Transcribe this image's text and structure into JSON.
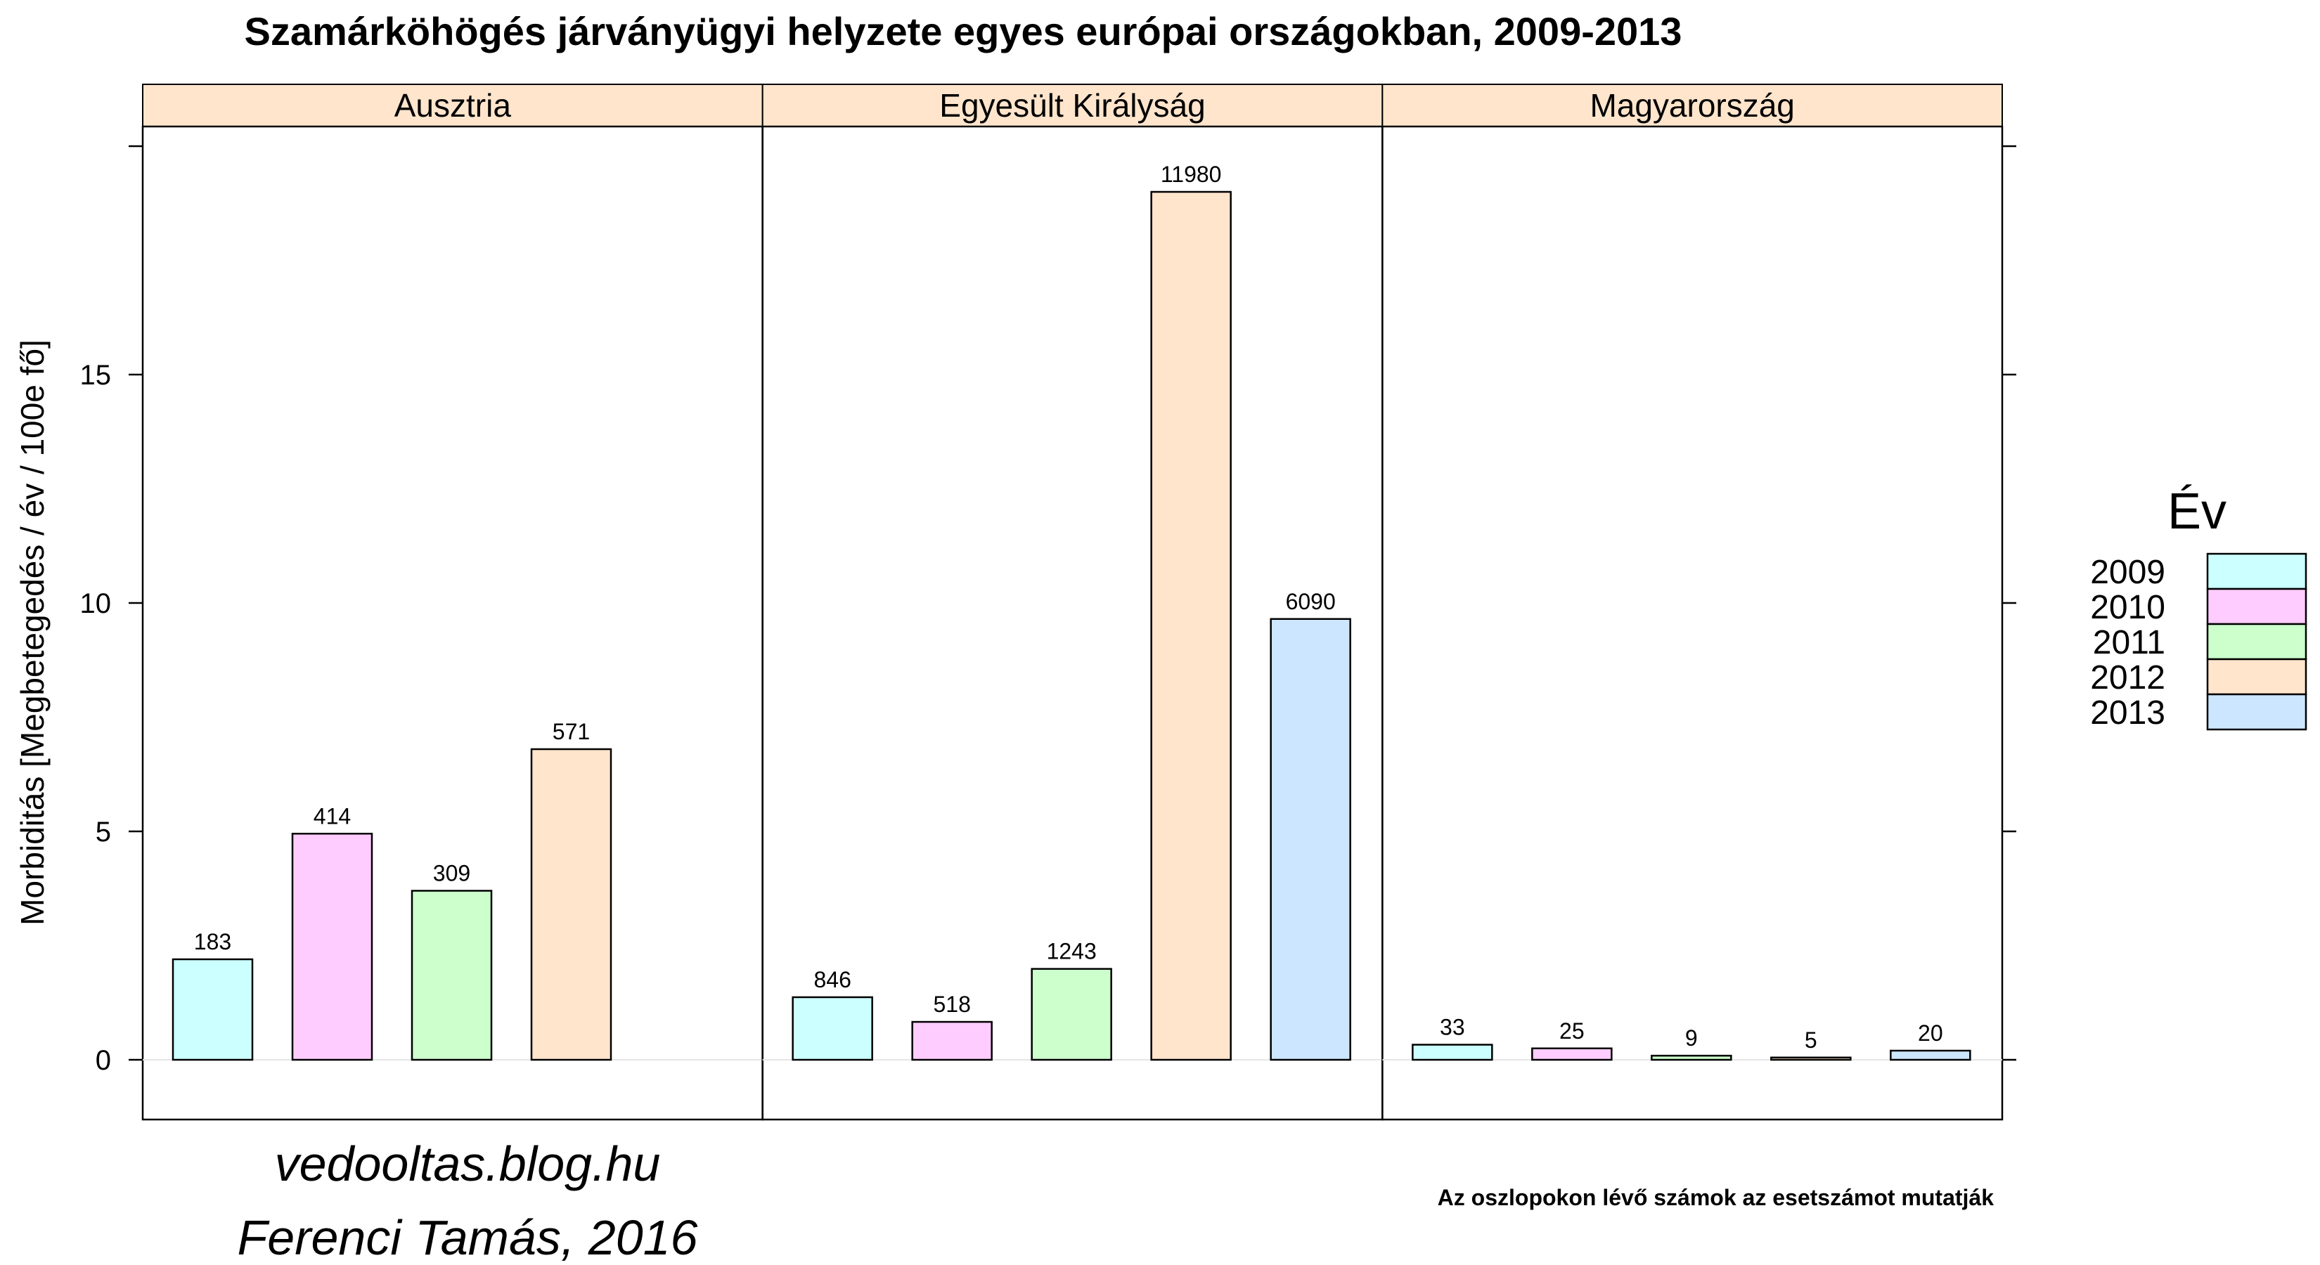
{
  "chart_data": {
    "type": "bar",
    "title": "Szamárköhögés járványügyi helyzete egyes európai országokban, 2009-2013",
    "ylabel": "Morbiditás [Megbetegedés / év / 100e fő]",
    "xlabel": "",
    "ylim": [
      -1.3,
      20.3
    ],
    "yticks": [
      0,
      5,
      10,
      15
    ],
    "legend": {
      "title": "Év",
      "position": "right",
      "entries": [
        "2009",
        "2010",
        "2011",
        "2012",
        "2013"
      ]
    },
    "colors": {
      "2009": "#ccffff",
      "2010": "#ffccff",
      "2011": "#ccffcc",
      "2012": "#ffe5cc",
      "2013": "#cce6ff",
      "strip": "#ffe5cc"
    },
    "panels": [
      {
        "name": "Ausztria",
        "bars": [
          {
            "year": "2009",
            "value": 2.2,
            "label": "183"
          },
          {
            "year": "2010",
            "value": 4.95,
            "label": "414"
          },
          {
            "year": "2011",
            "value": 3.7,
            "label": "309"
          },
          {
            "year": "2012",
            "value": 6.8,
            "label": "571"
          }
        ]
      },
      {
        "name": "Egyesült Királyság",
        "bars": [
          {
            "year": "2009",
            "value": 1.37,
            "label": "846"
          },
          {
            "year": "2010",
            "value": 0.83,
            "label": "518"
          },
          {
            "year": "2011",
            "value": 1.99,
            "label": "1243"
          },
          {
            "year": "2012",
            "value": 19.0,
            "label": "11980"
          },
          {
            "year": "2013",
            "value": 9.65,
            "label": "6090"
          }
        ]
      },
      {
        "name": "Magyarország",
        "bars": [
          {
            "year": "2009",
            "value": 0.33,
            "label": "33"
          },
          {
            "year": "2010",
            "value": 0.25,
            "label": "25"
          },
          {
            "year": "2011",
            "value": 0.09,
            "label": "9"
          },
          {
            "year": "2012",
            "value": 0.05,
            "label": "5"
          },
          {
            "year": "2013",
            "value": 0.2,
            "label": "20"
          }
        ]
      }
    ]
  },
  "footer": {
    "blog": "vedooltas.blog.hu",
    "author": "Ferenci Tamás, 2016",
    "note": "Az oszlopokon lévő számok az esetszámot mutatják"
  }
}
